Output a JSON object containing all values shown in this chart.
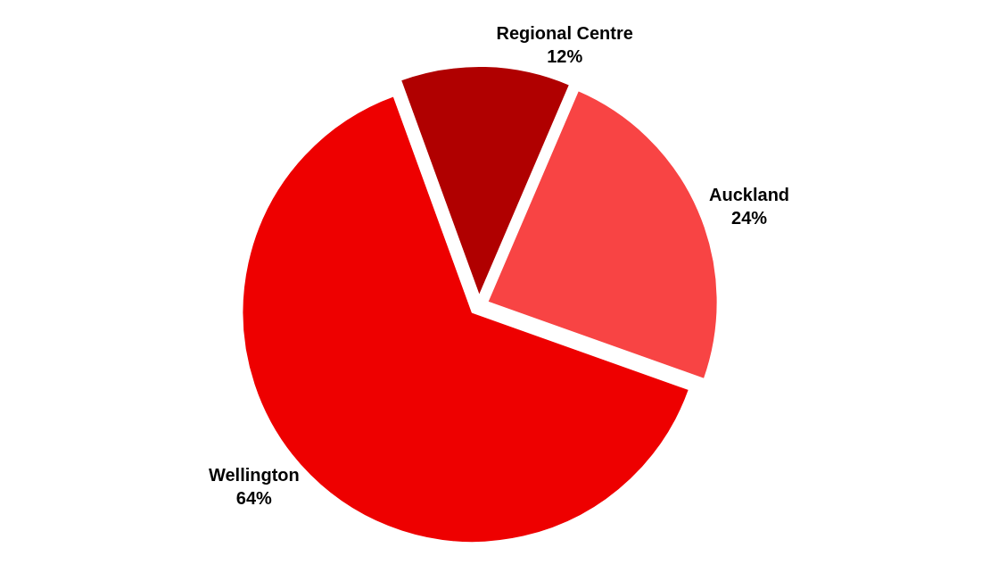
{
  "chart_data": {
    "type": "pie",
    "categories": [
      "Regional Centre",
      "Auckland",
      "Wellington"
    ],
    "values": [
      12,
      24,
      64
    ],
    "value_labels": [
      "12%",
      "24%",
      "64%"
    ],
    "colors": [
      "#b00000",
      "#f84444",
      "#ee0000"
    ],
    "legend": false
  }
}
